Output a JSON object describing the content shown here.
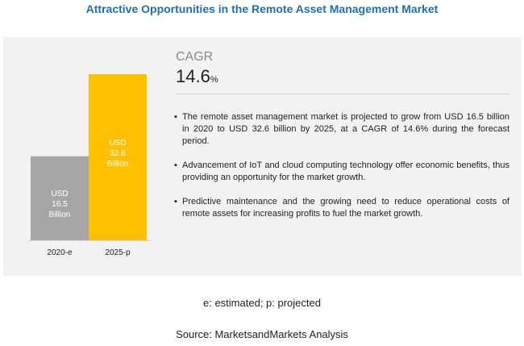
{
  "title": "Attractive Opportunities in the Remote Asset Management Market",
  "cagr": {
    "label": "CAGR",
    "value": "14.6",
    "unit": "%"
  },
  "bullets": [
    "The remote asset management market is projected to grow from USD 16.5 billion in 2020 to USD 32.6 billion by 2025, at a CAGR of 14.6% during the forecast period.",
    "Advancement of IoT and cloud computing technology offer economic benefits, thus providing an opportunity for the market growth.",
    "Predictive maintenance and the growing need to reduce operational costs of remote assets for increasing profits to fuel the market growth."
  ],
  "bullet_symbol": "▪",
  "footnote": "e: estimated; p: projected",
  "source": "Source: MarketsandMarkets Analysis",
  "colors": {
    "bar_2020": "#a6a6a6",
    "bar_2025": "#ffc000",
    "title": "#1f6fb2"
  },
  "chart_data": {
    "type": "bar",
    "categories": [
      "2020-e",
      "2025-p"
    ],
    "values": [
      16.5,
      32.6
    ],
    "value_labels": [
      [
        "USD",
        "16.5",
        "Billion"
      ],
      [
        "USD",
        "32.6",
        "Billion"
      ]
    ],
    "title": "",
    "xlabel": "",
    "ylabel": "",
    "ylim": [
      0,
      32.6
    ],
    "grid": false
  }
}
